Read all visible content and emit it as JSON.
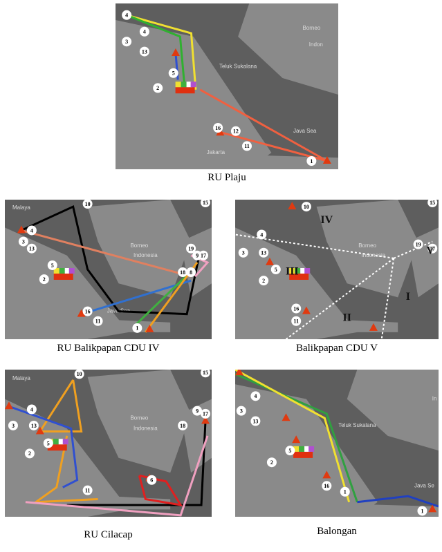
{
  "panels": [
    {
      "caption": "RU Plaju",
      "markers": [
        "4",
        "4",
        "3",
        "13",
        "5",
        "2",
        "16",
        "12",
        "11",
        "1"
      ],
      "places": [
        "Borneo",
        "Indon",
        "Teluk Sukalana",
        "Java Sea",
        "Jakarta"
      ]
    },
    {
      "caption": "RU Balikpapan CDU IV",
      "markers": [
        "10",
        "15",
        "4",
        "3",
        "13",
        "5",
        "2",
        "19",
        "9",
        "17",
        "18",
        "8",
        "16",
        "11",
        "1"
      ],
      "places": [
        "Malaya",
        "Borneo",
        "Indonesia",
        "Java Sea"
      ]
    },
    {
      "caption": "Balikpapan CDU V",
      "markers": [
        "10",
        "15",
        "4",
        "3",
        "13",
        "5",
        "2",
        "19",
        "17",
        "16",
        "11"
      ],
      "regions": [
        "IV",
        "III",
        "II",
        "I",
        "V"
      ],
      "places": [
        "Borneo",
        "Indonesia"
      ]
    },
    {
      "caption": "RU Cilacap",
      "markers": [
        "10",
        "15",
        "4",
        "3",
        "13",
        "5",
        "2",
        "9",
        "17",
        "18",
        "11",
        "6"
      ],
      "places": [
        "Malaya",
        "Borneo",
        "Indonesia"
      ]
    },
    {
      "caption": "Balongan",
      "markers": [
        "3",
        "4",
        "13",
        "5",
        "2",
        "16",
        "1",
        "1"
      ],
      "places": [
        "Teluk Sukalana",
        "Java Se",
        "In"
      ]
    }
  ]
}
